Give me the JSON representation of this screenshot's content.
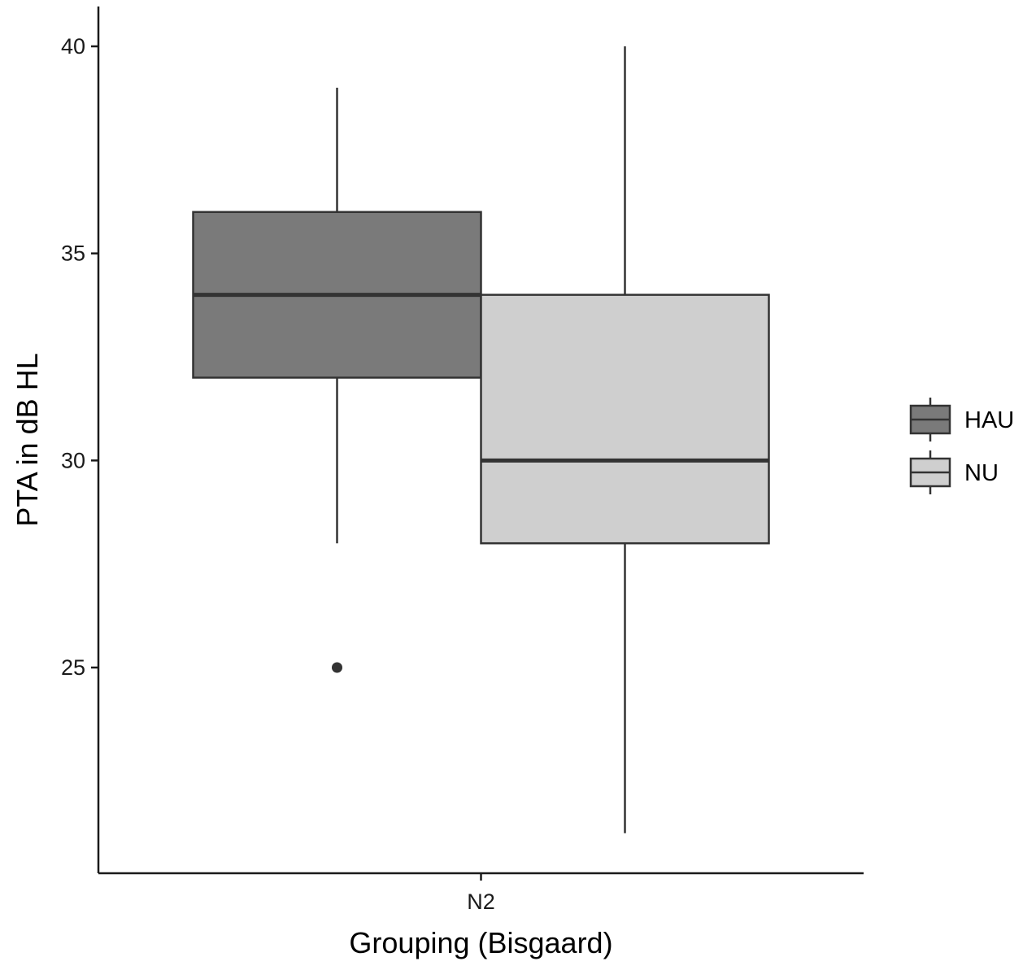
{
  "chart_data": {
    "type": "boxplot",
    "title": "",
    "xlabel": "Grouping (Bisgaard)",
    "ylabel": "PTA in dB HL",
    "categories": [
      "N2"
    ],
    "y_ticks": [
      25,
      30,
      35,
      40
    ],
    "ylim": [
      20.0,
      41.0
    ],
    "grid": false,
    "legend_position": "right",
    "series": [
      {
        "name": "HAU",
        "color": "#7a7a7a",
        "boxes": [
          {
            "category": "N2",
            "whisker_low": 28,
            "q1": 32,
            "median": 34,
            "q3": 36,
            "whisker_high": 39,
            "outliers": [
              25
            ]
          }
        ]
      },
      {
        "name": "NU",
        "color": "#cfcfcf",
        "boxes": [
          {
            "category": "N2",
            "whisker_low": 21,
            "q1": 28,
            "median": 30,
            "q3": 34,
            "whisker_high": 40,
            "outliers": []
          }
        ]
      }
    ]
  }
}
